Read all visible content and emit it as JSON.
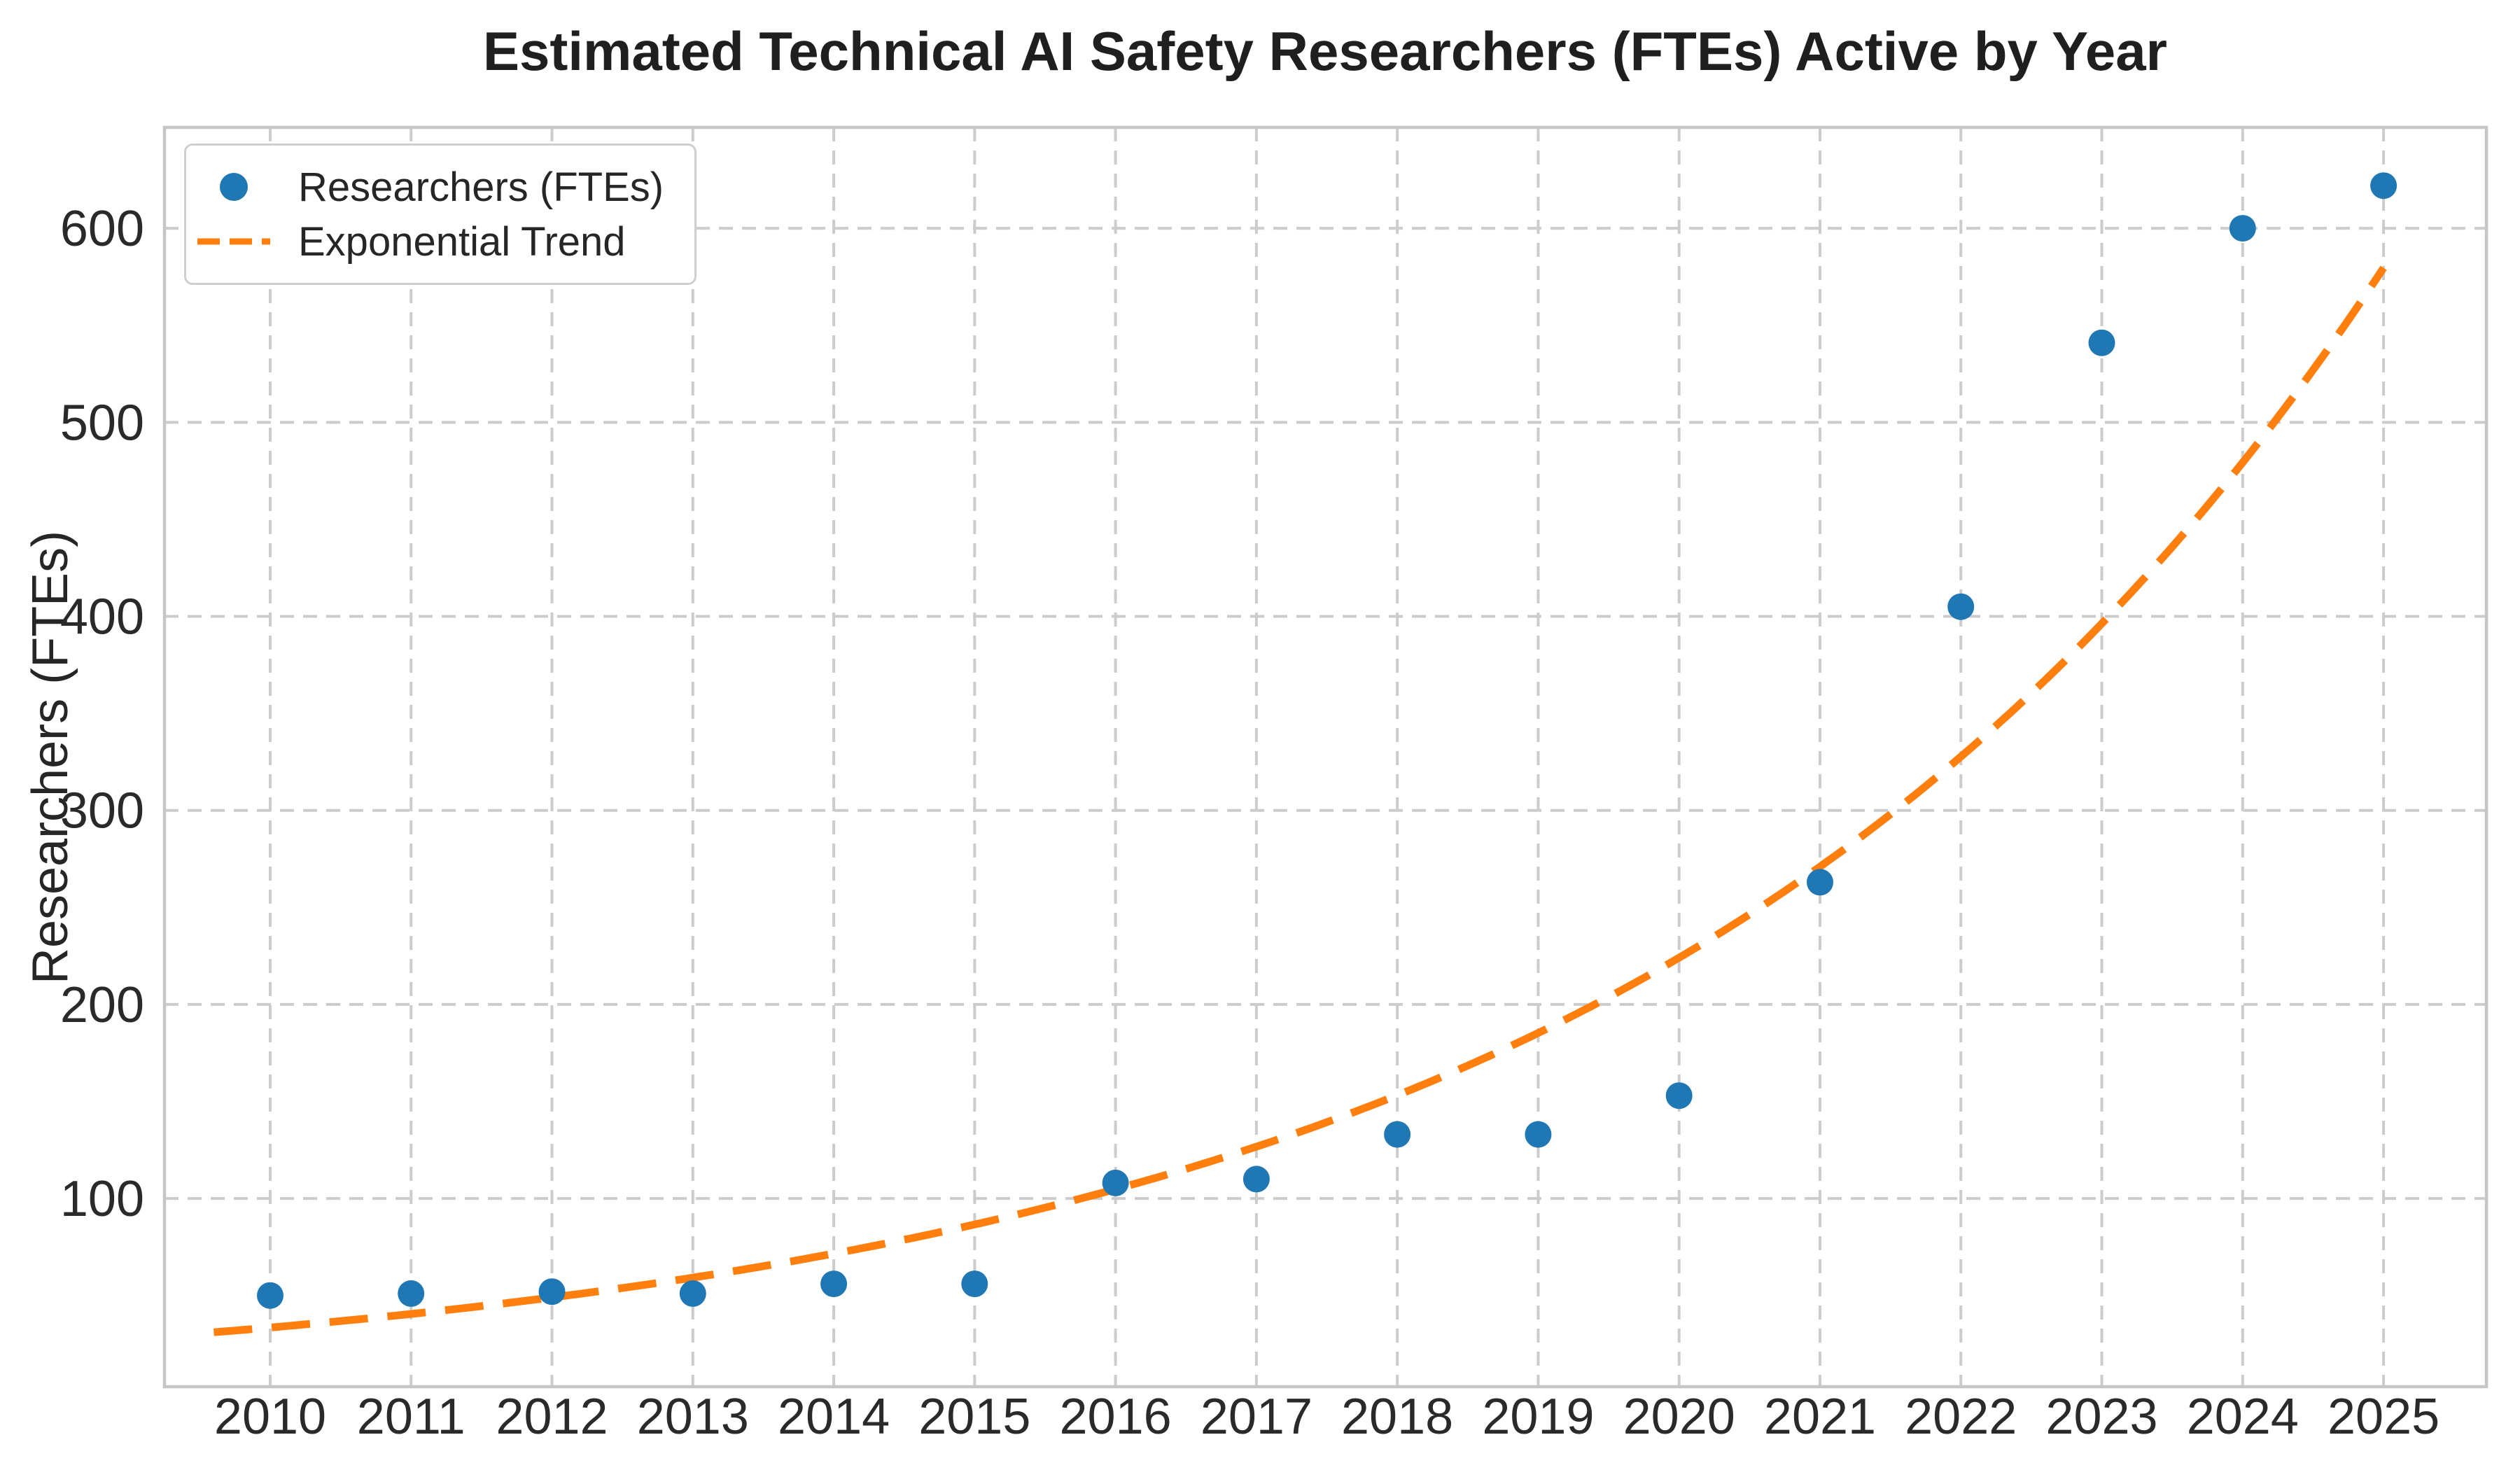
{
  "title": "Estimated Technical AI Safety Researchers (FTEs) Active by Year",
  "ylabel": "Researchers (FTEs)",
  "legend": {
    "items": [
      {
        "label": "Researchers (FTEs)",
        "marker": "dot-icon"
      },
      {
        "label": "Exponential Trend",
        "marker": "dashed-line-icon"
      }
    ]
  },
  "colors": {
    "scatter": "#1f77b4",
    "trend": "#ff7f0e",
    "grid": "#cccccc",
    "spine": "#c6c6c6",
    "tick_text": "#2a2a2a",
    "title_text": "#1f1f1f",
    "background": "#ffffff",
    "legend_border": "#cfcfcf"
  },
  "chart_data": {
    "type": "scatter",
    "title": "Estimated Technical AI Safety Researchers (FTEs) Active by Year",
    "xlabel": "",
    "ylabel": "Researchers (FTEs)",
    "x": [
      2010,
      2011,
      2012,
      2013,
      2014,
      2015,
      2016,
      2017,
      2018,
      2019,
      2020,
      2021,
      2022,
      2023,
      2024,
      2025
    ],
    "xticks": [
      "2010",
      "2011",
      "2012",
      "2013",
      "2014",
      "2015",
      "2016",
      "2017",
      "2018",
      "2019",
      "2020",
      "2021",
      "2022",
      "2023",
      "2024",
      "2025"
    ],
    "yticks": [
      100,
      200,
      300,
      400,
      500,
      600
    ],
    "xlim": [
      2009.25,
      2025.73
    ],
    "ylim": [
      3,
      652
    ],
    "grid": true,
    "grid_style": "dashed",
    "legend_position": "upper left",
    "series": [
      {
        "name": "Researchers (FTEs)",
        "type": "scatter",
        "color": "#1f77b4",
        "marker_radius": 19,
        "values": [
          50,
          51,
          52,
          51,
          56,
          56,
          108,
          110,
          133,
          133,
          153,
          263,
          405,
          541,
          600,
          622
        ]
      },
      {
        "name": "Exponential Trend",
        "type": "line",
        "style": "dashed",
        "color": "#ff7f0e",
        "values": [
          33.5,
          40.5,
          49.0,
          59.2,
          71.6,
          86.6,
          104.8,
          126.7,
          153.2,
          185.3,
          224.1,
          271.0,
          327.7,
          396.3,
          479.3,
          579.6
        ]
      }
    ]
  }
}
